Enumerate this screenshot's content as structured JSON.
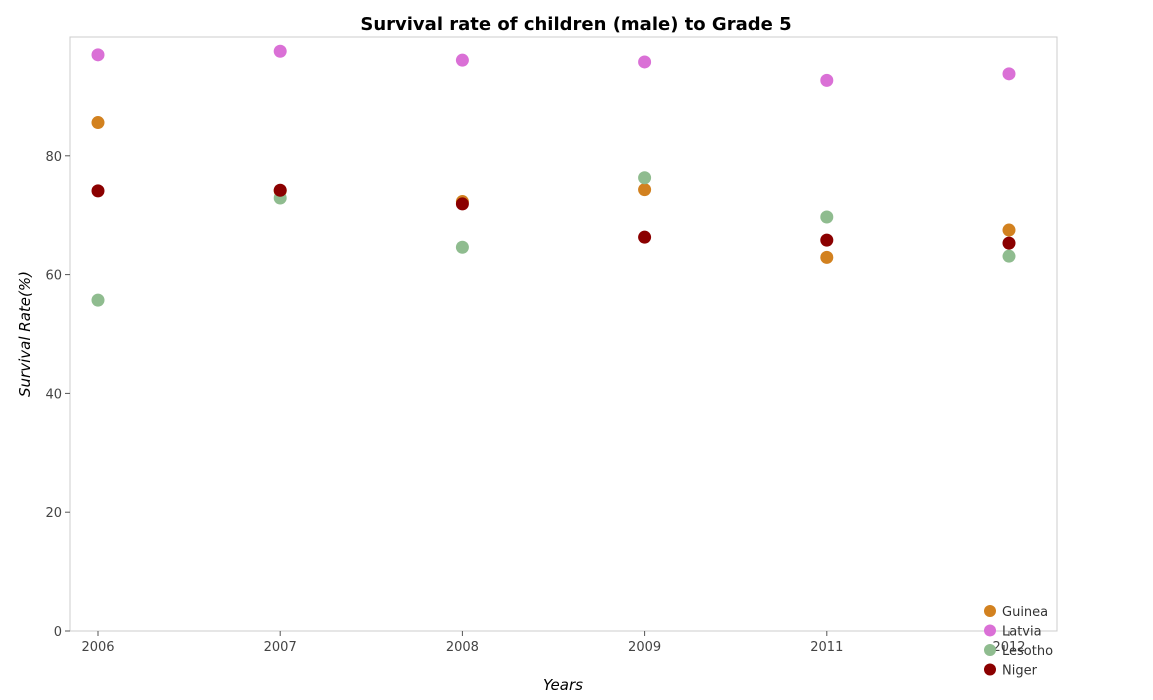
{
  "chart_data": {
    "type": "scatter",
    "title": "Survival rate of children (male) to Grade 5",
    "xlabel": "Years",
    "ylabel": "Survival Rate(%)",
    "categories": [
      "2006",
      "2007",
      "2008",
      "2009",
      "2011",
      "2012"
    ],
    "ylim": [
      0,
      100
    ],
    "yticks": [
      0,
      20,
      40,
      60,
      80
    ],
    "grid": false,
    "legend_position": "bottom-right",
    "series": [
      {
        "name": "Guinea",
        "color": "#d2811f",
        "values": [
          85.6,
          74.1,
          72.3,
          74.3,
          62.9,
          67.5
        ]
      },
      {
        "name": "Latvia",
        "color": "#da70d6",
        "values": [
          97.0,
          97.6,
          96.1,
          95.8,
          92.7,
          93.8
        ]
      },
      {
        "name": "Lesotho",
        "color": "#8fbc8f",
        "values": [
          55.7,
          72.9,
          64.6,
          76.3,
          69.7,
          63.1
        ]
      },
      {
        "name": "Niger",
        "color": "#8b0000",
        "values": [
          74.1,
          74.2,
          71.9,
          66.3,
          65.8,
          65.3
        ]
      }
    ]
  }
}
